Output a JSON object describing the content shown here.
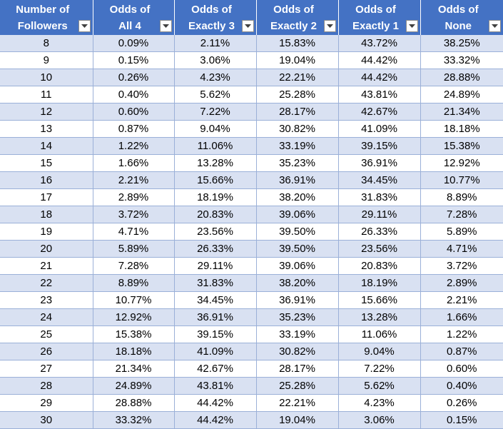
{
  "columns": [
    {
      "line1": "Number of",
      "line2": "Followers",
      "filter_icon": "dropdown-arrow-icon"
    },
    {
      "line1": "Odds of",
      "line2": "All 4",
      "filter_icon": "dropdown-arrow-icon"
    },
    {
      "line1": "Odds of",
      "line2": "Exactly 3",
      "filter_icon": "dropdown-arrow-icon"
    },
    {
      "line1": "Odds of",
      "line2": "Exactly 2",
      "filter_icon": "dropdown-arrow-icon"
    },
    {
      "line1": "Odds of",
      "line2": "Exactly 1",
      "filter_icon": "dropdown-arrow-icon"
    },
    {
      "line1": "Odds of",
      "line2": "None",
      "filter_icon": "dropdown-arrow-icon"
    }
  ],
  "colors": {
    "header_bg": "#4472c4",
    "header_text": "#ffffff",
    "band_row": "#d9e1f2",
    "plain_row": "#ffffff"
  },
  "rows": [
    [
      "8",
      "0.09%",
      "2.11%",
      "15.83%",
      "43.72%",
      "38.25%"
    ],
    [
      "9",
      "0.15%",
      "3.06%",
      "19.04%",
      "44.42%",
      "33.32%"
    ],
    [
      "10",
      "0.26%",
      "4.23%",
      "22.21%",
      "44.42%",
      "28.88%"
    ],
    [
      "11",
      "0.40%",
      "5.62%",
      "25.28%",
      "43.81%",
      "24.89%"
    ],
    [
      "12",
      "0.60%",
      "7.22%",
      "28.17%",
      "42.67%",
      "21.34%"
    ],
    [
      "13",
      "0.87%",
      "9.04%",
      "30.82%",
      "41.09%",
      "18.18%"
    ],
    [
      "14",
      "1.22%",
      "11.06%",
      "33.19%",
      "39.15%",
      "15.38%"
    ],
    [
      "15",
      "1.66%",
      "13.28%",
      "35.23%",
      "36.91%",
      "12.92%"
    ],
    [
      "16",
      "2.21%",
      "15.66%",
      "36.91%",
      "34.45%",
      "10.77%"
    ],
    [
      "17",
      "2.89%",
      "18.19%",
      "38.20%",
      "31.83%",
      "8.89%"
    ],
    [
      "18",
      "3.72%",
      "20.83%",
      "39.06%",
      "29.11%",
      "7.28%"
    ],
    [
      "19",
      "4.71%",
      "23.56%",
      "39.50%",
      "26.33%",
      "5.89%"
    ],
    [
      "20",
      "5.89%",
      "26.33%",
      "39.50%",
      "23.56%",
      "4.71%"
    ],
    [
      "21",
      "7.28%",
      "29.11%",
      "39.06%",
      "20.83%",
      "3.72%"
    ],
    [
      "22",
      "8.89%",
      "31.83%",
      "38.20%",
      "18.19%",
      "2.89%"
    ],
    [
      "23",
      "10.77%",
      "34.45%",
      "36.91%",
      "15.66%",
      "2.21%"
    ],
    [
      "24",
      "12.92%",
      "36.91%",
      "35.23%",
      "13.28%",
      "1.66%"
    ],
    [
      "25",
      "15.38%",
      "39.15%",
      "33.19%",
      "11.06%",
      "1.22%"
    ],
    [
      "26",
      "18.18%",
      "41.09%",
      "30.82%",
      "9.04%",
      "0.87%"
    ],
    [
      "27",
      "21.34%",
      "42.67%",
      "28.17%",
      "7.22%",
      "0.60%"
    ],
    [
      "28",
      "24.89%",
      "43.81%",
      "25.28%",
      "5.62%",
      "0.40%"
    ],
    [
      "29",
      "28.88%",
      "44.42%",
      "22.21%",
      "4.23%",
      "0.26%"
    ],
    [
      "30",
      "33.32%",
      "44.42%",
      "19.04%",
      "3.06%",
      "0.15%"
    ]
  ]
}
